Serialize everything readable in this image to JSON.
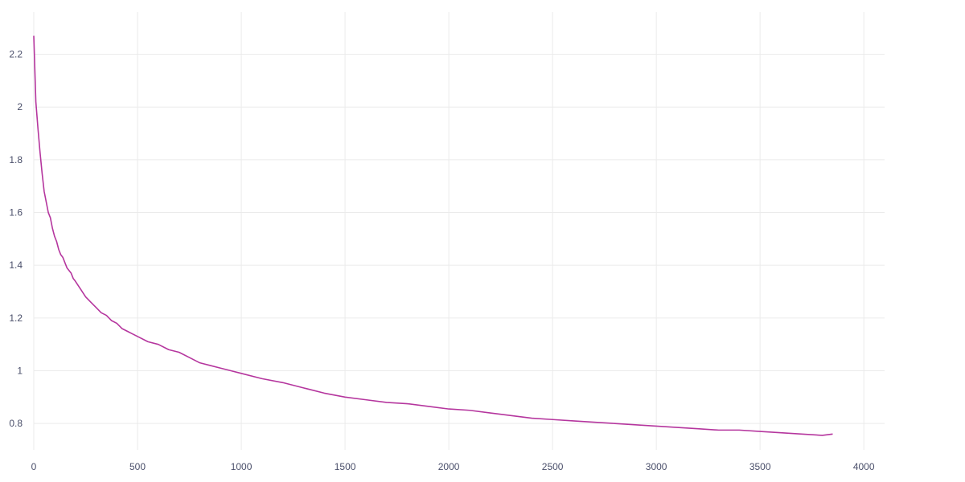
{
  "chart_data": {
    "type": "line",
    "title": "",
    "xlabel": "",
    "ylabel": "",
    "xlim": [
      0,
      4100
    ],
    "ylim": [
      0.7,
      2.36
    ],
    "x_ticks": [
      0,
      500,
      1000,
      1500,
      2000,
      2500,
      3000,
      3500,
      4000
    ],
    "x_tick_labels": [
      "0",
      "500",
      "1000",
      "1500",
      "2000",
      "2500",
      "3000",
      "3500",
      "4000"
    ],
    "y_ticks": [
      0.8,
      1.0,
      1.2,
      1.4,
      1.6,
      1.8,
      2.0,
      2.2
    ],
    "y_tick_labels": [
      "0.8",
      "1",
      "1.2",
      "1.4",
      "1.6",
      "1.8",
      "2",
      "2.2"
    ],
    "grid": true,
    "legend": "none",
    "series": [
      {
        "color": "#b5369e",
        "x": [
          0,
          10,
          20,
          30,
          40,
          50,
          60,
          70,
          80,
          90,
          100,
          110,
          120,
          130,
          140,
          150,
          160,
          170,
          180,
          190,
          200,
          225,
          250,
          275,
          300,
          325,
          350,
          375,
          400,
          425,
          450,
          475,
          500,
          550,
          600,
          650,
          700,
          750,
          800,
          850,
          900,
          950,
          1000,
          1100,
          1200,
          1300,
          1400,
          1500,
          1600,
          1700,
          1800,
          1900,
          2000,
          2100,
          2200,
          2300,
          2400,
          2500,
          2600,
          2700,
          2800,
          2900,
          3000,
          3100,
          3200,
          3300,
          3400,
          3500,
          3600,
          3700,
          3800,
          3850
        ],
        "y": [
          2.27,
          2.02,
          1.92,
          1.83,
          1.75,
          1.68,
          1.64,
          1.6,
          1.58,
          1.54,
          1.51,
          1.49,
          1.46,
          1.44,
          1.43,
          1.41,
          1.39,
          1.38,
          1.37,
          1.35,
          1.34,
          1.31,
          1.28,
          1.26,
          1.24,
          1.22,
          1.21,
          1.19,
          1.18,
          1.16,
          1.15,
          1.14,
          1.13,
          1.11,
          1.1,
          1.08,
          1.07,
          1.05,
          1.03,
          1.02,
          1.01,
          1.0,
          0.99,
          0.97,
          0.955,
          0.935,
          0.915,
          0.9,
          0.89,
          0.88,
          0.875,
          0.865,
          0.855,
          0.85,
          0.84,
          0.83,
          0.82,
          0.815,
          0.81,
          0.805,
          0.8,
          0.795,
          0.79,
          0.785,
          0.78,
          0.775,
          0.775,
          0.77,
          0.765,
          0.76,
          0.755,
          0.76
        ]
      }
    ]
  }
}
